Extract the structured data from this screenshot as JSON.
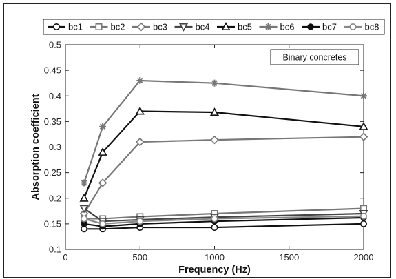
{
  "chart_data": {
    "type": "line",
    "annotation": "Binary concretes",
    "xlabel": "Frequency (Hz)",
    "ylabel": "Absorption coefficient",
    "xlim": [
      0,
      2000
    ],
    "ylim": [
      0.1,
      0.5
    ],
    "x_ticks": [
      0,
      500,
      1000,
      1500,
      2000
    ],
    "y_ticks": [
      0.1,
      0.15,
      0.2,
      0.25,
      0.3,
      0.35,
      0.4,
      0.45,
      0.5
    ],
    "x_tick_labels": [
      "0",
      "500",
      "1000",
      "1500",
      "2000"
    ],
    "y_tick_labels": [
      "0.1",
      "0.15",
      "0.2",
      "0.25",
      "0.3",
      "0.35",
      "0.4",
      "0.45",
      "0.5"
    ],
    "grid": false,
    "legend_position": "top",
    "x": [
      125,
      250,
      500,
      1000,
      2000
    ],
    "series": [
      {
        "name": "bc1",
        "marker": "circle",
        "color": "#111111",
        "values": [
          0.14,
          0.14,
          0.143,
          0.143,
          0.15
        ]
      },
      {
        "name": "bc2",
        "marker": "square",
        "color": "#777777",
        "values": [
          0.16,
          0.16,
          0.164,
          0.17,
          0.18
        ]
      },
      {
        "name": "bc3",
        "marker": "diamond",
        "color": "#777777",
        "values": [
          0.17,
          0.23,
          0.31,
          0.314,
          0.32
        ]
      },
      {
        "name": "bc4",
        "marker": "triangle-down",
        "color": "#444444",
        "values": [
          0.18,
          0.155,
          0.158,
          0.163,
          0.17
        ]
      },
      {
        "name": "bc5",
        "marker": "triangle-up",
        "color": "#111111",
        "values": [
          0.2,
          0.29,
          0.37,
          0.368,
          0.34
        ]
      },
      {
        "name": "bc6",
        "marker": "asterisk",
        "color": "#777777",
        "values": [
          0.23,
          0.34,
          0.43,
          0.425,
          0.4
        ]
      },
      {
        "name": "bc7",
        "marker": "dot",
        "color": "#111111",
        "values": [
          0.15,
          0.145,
          0.15,
          0.155,
          0.162
        ]
      },
      {
        "name": "bc8",
        "marker": "circle",
        "color": "#888888",
        "values": [
          0.16,
          0.15,
          0.155,
          0.16,
          0.165
        ]
      }
    ]
  }
}
